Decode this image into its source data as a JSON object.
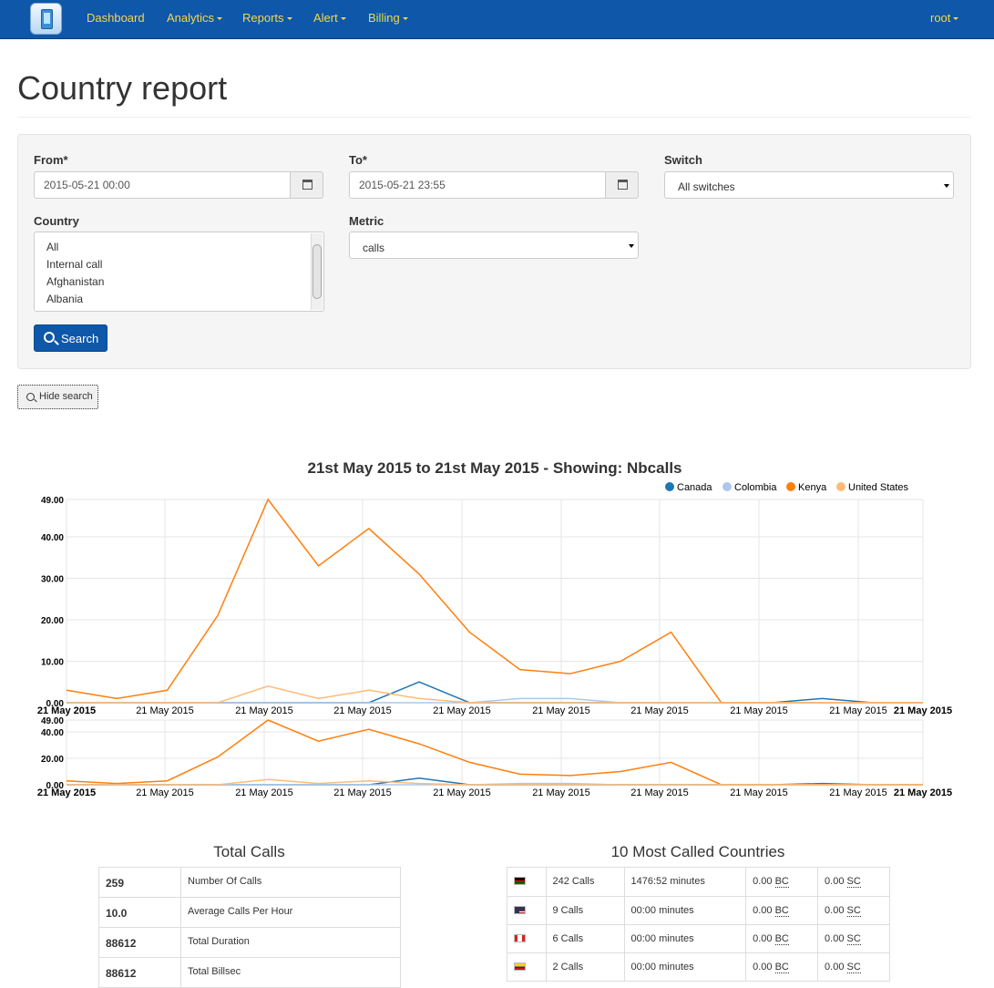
{
  "navbar": {
    "items": [
      {
        "label": "Dashboard",
        "dropdown": false
      },
      {
        "label": "Analytics",
        "dropdown": true
      },
      {
        "label": "Reports",
        "dropdown": true
      },
      {
        "label": "Alert",
        "dropdown": true
      },
      {
        "label": "Billing",
        "dropdown": true
      }
    ],
    "user": "root",
    "color": "#0e57a9",
    "link_color": "#f2d94a"
  },
  "page": {
    "title": "Country report"
  },
  "search": {
    "from_label": "From*",
    "from_value": "2015-05-21 00:00",
    "to_label": "To*",
    "to_value": "2015-05-21 23:55",
    "switch_label": "Switch",
    "switch_value": "All switches",
    "country_label": "Country",
    "country_options": [
      "All",
      "Internal call",
      "Afghanistan",
      "Albania"
    ],
    "metric_label": "Metric",
    "metric_value": "calls",
    "search_button": "Search",
    "hide_button": "Hide search"
  },
  "chart_data": {
    "type": "line",
    "title": "21st May 2015 to 21st May 2015 - Showing: Nbcalls",
    "legend_position": "top-right",
    "x_tick_labels": [
      "21 May 2015",
      "21 May 2015",
      "21 May 2015",
      "21 May 2015",
      "21 May 2015",
      "21 May 2015",
      "21 May 2015",
      "21 May 2015",
      "21 May 2015",
      "21 May 2015"
    ],
    "x_tick_first": "21 May 2015",
    "x_tick_last": "21 May 2015",
    "y_ticks": [
      "0.00",
      "10.00",
      "20.00",
      "30.00",
      "40.00",
      "49.00"
    ],
    "ylim": [
      0,
      49
    ],
    "context_y_ticks": [
      "0.00",
      "20.00",
      "40.00",
      "49.00"
    ],
    "grid": true,
    "x": [
      0,
      1,
      2,
      3,
      4,
      5,
      6,
      7,
      8,
      9,
      10,
      11,
      12,
      13,
      14,
      15,
      16,
      17
    ],
    "series": [
      {
        "name": "Canada",
        "color": "#1f77b4",
        "values": [
          0,
          0,
          0,
          0,
          0,
          0,
          0,
          5,
          0,
          0,
          0,
          0,
          0,
          0,
          0,
          1,
          0,
          0
        ]
      },
      {
        "name": "Colombia",
        "color": "#aec7e8",
        "values": [
          0,
          0,
          0,
          0,
          0,
          0,
          0,
          0,
          0,
          1,
          1,
          0,
          0,
          0,
          0,
          0,
          0,
          0
        ]
      },
      {
        "name": "Kenya",
        "color": "#ff7f0e",
        "values": [
          3,
          1,
          3,
          21,
          49,
          33,
          42,
          31,
          17,
          8,
          7,
          10,
          17,
          0,
          0,
          0,
          0,
          0
        ]
      },
      {
        "name": "United States",
        "color": "#ffbb78",
        "values": [
          0,
          0,
          0,
          0,
          4,
          1,
          3,
          1,
          0,
          0,
          0,
          0,
          0,
          0,
          0,
          0,
          0,
          0
        ]
      }
    ]
  },
  "total_calls": {
    "title": "Total Calls",
    "rows": [
      {
        "value": "259",
        "label": "Number Of Calls"
      },
      {
        "value": "10.0",
        "label": "Average Calls Per Hour"
      },
      {
        "value": "88612",
        "label": "Total Duration"
      },
      {
        "value": "88612",
        "label": "Total Billsec"
      }
    ]
  },
  "top_countries": {
    "title": "10 Most Called Countries",
    "rows": [
      {
        "flag": "kenya-flag",
        "calls": "242 Calls",
        "minutes": "1476:52 minutes",
        "bc_value": "0.00",
        "bc": "BC",
        "sc_value": "0.00",
        "sc": "SC"
      },
      {
        "flag": "usa-flag",
        "calls": "9 Calls",
        "minutes": "00:00 minutes",
        "bc_value": "0.00",
        "bc": "BC",
        "sc_value": "0.00",
        "sc": "SC"
      },
      {
        "flag": "canada-flag",
        "calls": "6 Calls",
        "minutes": "00:00 minutes",
        "bc_value": "0.00",
        "bc": "BC",
        "sc_value": "0.00",
        "sc": "SC"
      },
      {
        "flag": "colombia-flag",
        "calls": "2 Calls",
        "minutes": "00:00 minutes",
        "bc_value": "0.00",
        "bc": "BC",
        "sc_value": "0.00",
        "sc": "SC"
      }
    ]
  }
}
